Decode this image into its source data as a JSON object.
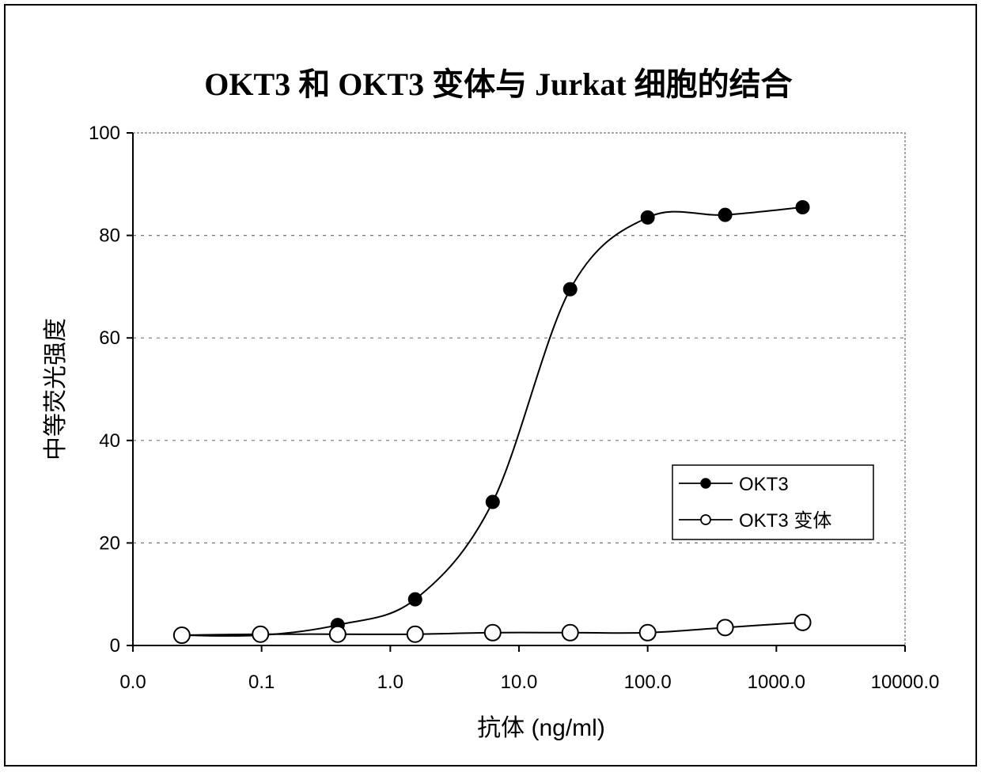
{
  "chart_data": {
    "type": "line",
    "title": "OKT3 和 OKT3 变体与 Jurkat 细胞的结合",
    "xlabel": "抗体 (ng/ml)",
    "ylabel": "中等荧光强度",
    "x_scale": "log",
    "xlim": [
      0.01,
      10000
    ],
    "ylim": [
      0,
      100
    ],
    "x_ticks": [
      0.01,
      0.1,
      1,
      10,
      100,
      1000,
      10000
    ],
    "x_tick_labels": [
      "0.0",
      "0.1",
      "1.0",
      "10.0",
      "100.0",
      "1000.0",
      "10000.0"
    ],
    "y_ticks": [
      0,
      20,
      40,
      60,
      80,
      100
    ],
    "y_tick_labels": [
      "0",
      "20",
      "40",
      "60",
      "80",
      "100"
    ],
    "grid": "horizontal dashed",
    "legend_position": "right-center",
    "x": [
      0.024,
      0.098,
      0.39,
      1.56,
      6.25,
      25,
      100,
      400,
      1600
    ],
    "series": [
      {
        "name": "OKT3",
        "marker": "filled-circle",
        "color": "#000000",
        "values": [
          2.0,
          2.0,
          4.0,
          9.0,
          28.0,
          69.5,
          83.5,
          84.0,
          85.5
        ]
      },
      {
        "name": "OKT3 变体",
        "marker": "open-circle",
        "color": "#000000",
        "values": [
          2.0,
          2.2,
          2.2,
          2.2,
          2.5,
          2.5,
          2.5,
          3.5,
          4.5
        ]
      }
    ]
  }
}
